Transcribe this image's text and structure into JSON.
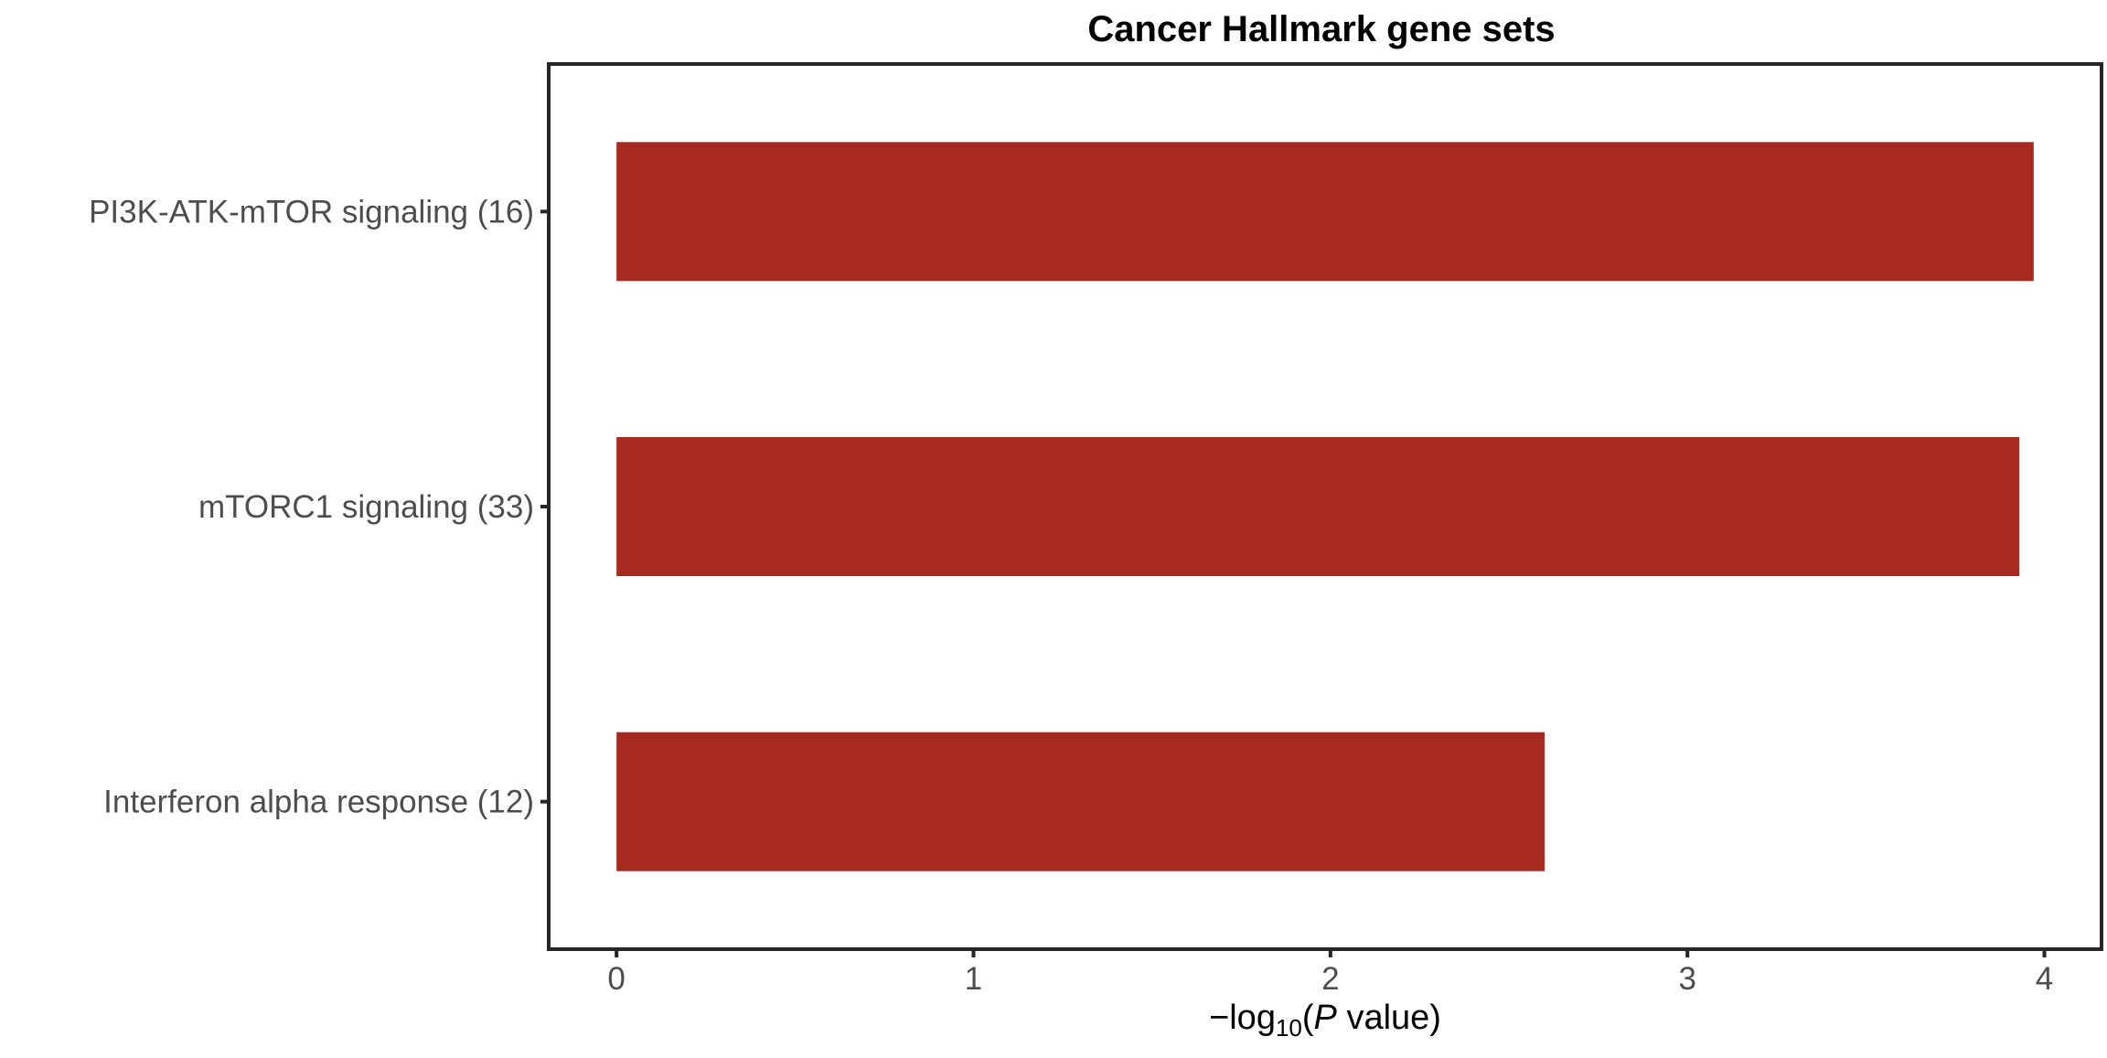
{
  "chart_data": {
    "type": "bar",
    "orientation": "horizontal",
    "title": "Cancer Hallmark gene sets",
    "categories": [
      "PI3K-ATK-mTOR signaling (16)",
      "mTORC1 signaling (33)",
      "Interferon alpha response (12)"
    ],
    "values": [
      3.97,
      3.93,
      2.6
    ],
    "xlabel": {
      "prefix": "−log",
      "subscript": "10",
      "open": "(",
      "italic": "P",
      "rest": " value)"
    },
    "xlim": [
      -0.19,
      4.16
    ],
    "xticks": [
      "0",
      "1",
      "2",
      "3",
      "4"
    ],
    "bar_color": "#a72a21",
    "frame_color": "#262626",
    "grid": false,
    "legend": "none"
  }
}
